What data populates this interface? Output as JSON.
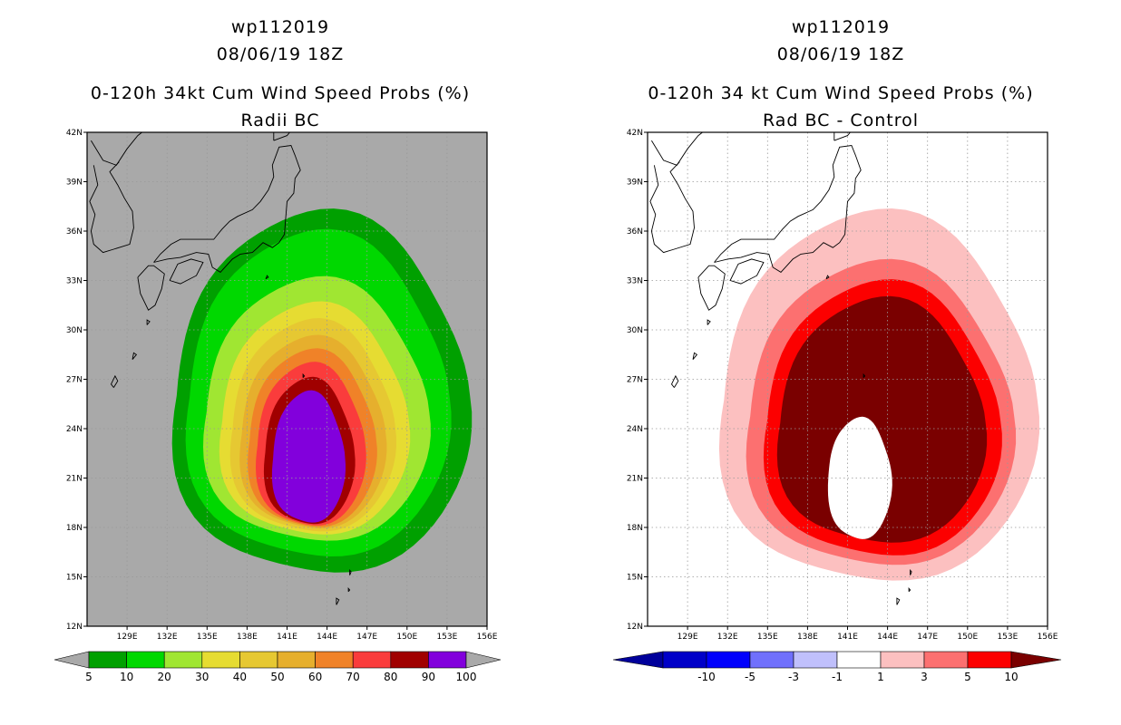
{
  "chart_data": [
    {
      "type": "heatmap",
      "panel": "left",
      "title_lines": [
        "wp112019",
        "08/06/19 18Z",
        "0-120h 34kt Cum Wind Speed Probs (%)",
        "Radii BC"
      ],
      "x_ticks": [
        "129E",
        "132E",
        "135E",
        "138E",
        "141E",
        "144E",
        "147E",
        "150E",
        "153E",
        "156E"
      ],
      "y_ticks": [
        "42N",
        "39N",
        "36N",
        "33N",
        "30N",
        "27N",
        "24N",
        "21N",
        "18N",
        "15N",
        "12N"
      ],
      "xlim": [
        126,
        156
      ],
      "ylim": [
        12,
        42
      ],
      "background": "#a9a9a9",
      "center": {
        "lon": 142.5,
        "lat": 22.5
      },
      "levels": [
        {
          "min": 5,
          "color": "#00a000",
          "lon_range": [
            132.5,
            154.5
          ],
          "lat_range": [
            15.0,
            37.0
          ]
        },
        {
          "min": 10,
          "color": "#00d800",
          "lon_range": [
            133.5,
            153.0
          ],
          "lat_range": [
            16.0,
            35.8
          ]
        },
        {
          "min": 20,
          "color": "#a0e632",
          "lon_range": [
            134.8,
            151.5
          ],
          "lat_range": [
            17.0,
            33.0
          ]
        },
        {
          "min": 30,
          "color": "#e6dc32",
          "lon_range": [
            136.0,
            150.0
          ],
          "lat_range": [
            17.4,
            31.5
          ]
        },
        {
          "min": 40,
          "color": "#e6c832",
          "lon_range": [
            136.8,
            149.0
          ],
          "lat_range": [
            17.6,
            30.5
          ]
        },
        {
          "min": 50,
          "color": "#e6af2d",
          "lon_range": [
            137.5,
            148.3
          ],
          "lat_range": [
            17.8,
            29.5
          ]
        },
        {
          "min": 60,
          "color": "#f08228",
          "lon_range": [
            138.1,
            147.6
          ],
          "lat_range": [
            17.9,
            28.7
          ]
        },
        {
          "min": 70,
          "color": "#fa3c3c",
          "lon_range": [
            138.7,
            146.8
          ],
          "lat_range": [
            18.0,
            27.9
          ]
        },
        {
          "min": 80,
          "color": "#a00000",
          "lon_range": [
            139.3,
            146.0
          ],
          "lat_range": [
            18.1,
            27.0
          ]
        },
        {
          "min": 90,
          "color": "#8200dc",
          "lon_range": [
            139.9,
            145.3
          ],
          "lat_range": [
            18.2,
            26.2
          ]
        }
      ],
      "colorbar": {
        "labels": [
          "5",
          "10",
          "20",
          "30",
          "40",
          "50",
          "60",
          "70",
          "80",
          "90",
          "100"
        ],
        "colors": [
          "#00a000",
          "#00d800",
          "#a0e632",
          "#e6dc32",
          "#e6c832",
          "#e6af2d",
          "#f08228",
          "#fa3c3c",
          "#a00000",
          "#8200dc"
        ],
        "under_color": "#a9a9a9",
        "over_color": "#a9a9a9"
      }
    },
    {
      "type": "heatmap",
      "panel": "right",
      "title_lines": [
        "wp112019",
        "08/06/19 18Z",
        "0-120h 34 kt Cum Wind Speed Probs (%)",
        "Rad BC - Control"
      ],
      "x_ticks": [
        "129E",
        "132E",
        "135E",
        "138E",
        "141E",
        "144E",
        "147E",
        "150E",
        "153E",
        "156E"
      ],
      "y_ticks": [
        "42N",
        "39N",
        "36N",
        "33N",
        "30N",
        "27N",
        "24N",
        "21N",
        "18N",
        "15N",
        "12N"
      ],
      "xlim": [
        126,
        156
      ],
      "ylim": [
        12,
        42
      ],
      "background": "#ffffff",
      "center": {
        "lon": 142.5,
        "lat": 23.0
      },
      "levels": [
        {
          "min": 1,
          "color": "#fcc0c0",
          "lon_range": [
            131.5,
            155.0
          ],
          "lat_range": [
            14.5,
            37.0
          ]
        },
        {
          "min": 3,
          "color": "#fc7070",
          "lon_range": [
            133.5,
            153.3
          ],
          "lat_range": [
            15.5,
            34.0
          ]
        },
        {
          "min": 5,
          "color": "#fc0000",
          "lon_range": [
            134.8,
            152.3
          ],
          "lat_range": [
            16.1,
            32.8
          ]
        },
        {
          "min": 10,
          "color": "#7a0000",
          "lon_range": [
            135.8,
            151.2
          ],
          "lat_range": [
            16.9,
            31.8
          ]
        }
      ],
      "inner_white_region": {
        "lon_range": [
          139.5,
          144.3
        ],
        "lat_range": [
          17.2,
          24.6
        ],
        "color": "#ffffff"
      },
      "colorbar": {
        "labels": [
          "-10",
          "-5",
          "-3",
          "-1",
          "1",
          "3",
          "5",
          "10"
        ],
        "colors": [
          "#0000c8",
          "#0000fc",
          "#7070fc",
          "#c0c0fc",
          "#ffffff",
          "#fcc0c0",
          "#fc7070",
          "#fc0000"
        ],
        "under_color": "#00009b",
        "over_color": "#7a0000"
      }
    }
  ]
}
